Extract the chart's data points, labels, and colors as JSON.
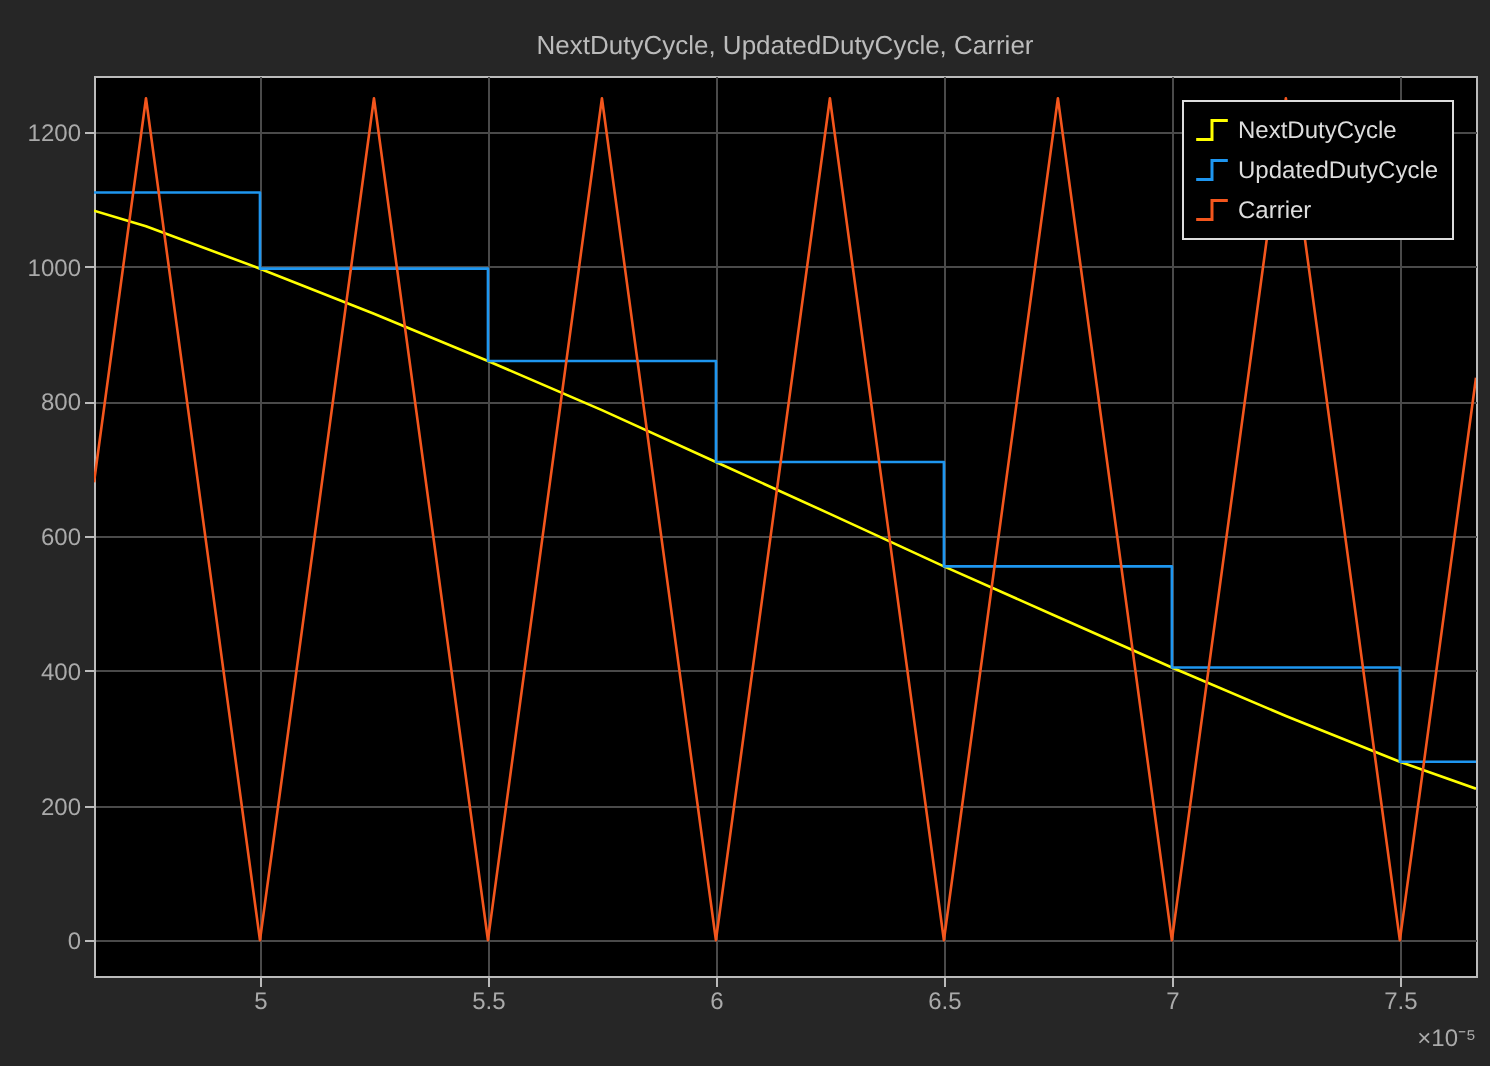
{
  "chart_data": {
    "type": "line",
    "title": "NextDutyCycle, UpdatedDutyCycle, Carrier",
    "annotations": [
      "×10⁻⁵"
    ],
    "xlim": [
      4.636,
      7.667
    ],
    "xticks": [
      5,
      5.5,
      6,
      6.5,
      7,
      7.5
    ],
    "ylim": [
      -53,
      1283
    ],
    "yticks": [
      0,
      200,
      400,
      600,
      800,
      1000,
      1200
    ],
    "grid": true,
    "legend": "top right",
    "series": [
      {
        "name": "NextDutyCycle",
        "color": "#ffff00",
        "x": [
          4.636,
          4.75,
          5,
          5.25,
          5.5,
          5.75,
          6,
          6.25,
          6.5,
          6.75,
          7,
          7.25,
          7.5,
          7.667
        ],
        "values": [
          1083,
          1060,
          997,
          930,
          860,
          787,
          710,
          633,
          555,
          480,
          405,
          333,
          265,
          225
        ]
      },
      {
        "name": "UpdatedDutyCycle",
        "type": "step",
        "color": "#1e96f0",
        "x": [
          4.636,
          5,
          5.5,
          6,
          6.5,
          7,
          7.5,
          7.667
        ],
        "values": [
          1110,
          997,
          860,
          710,
          555,
          405,
          265,
          265
        ]
      },
      {
        "name": "Carrier",
        "color": "#f4561d",
        "x": [
          4.636,
          4.75,
          5,
          5.25,
          5.5,
          5.75,
          6,
          6.25,
          6.5,
          6.75,
          7,
          7.25,
          7.5,
          7.667
        ],
        "values": [
          680,
          1250,
          0,
          1250,
          0,
          1250,
          0,
          1250,
          0,
          1250,
          0,
          1250,
          0,
          835
        ]
      }
    ]
  }
}
